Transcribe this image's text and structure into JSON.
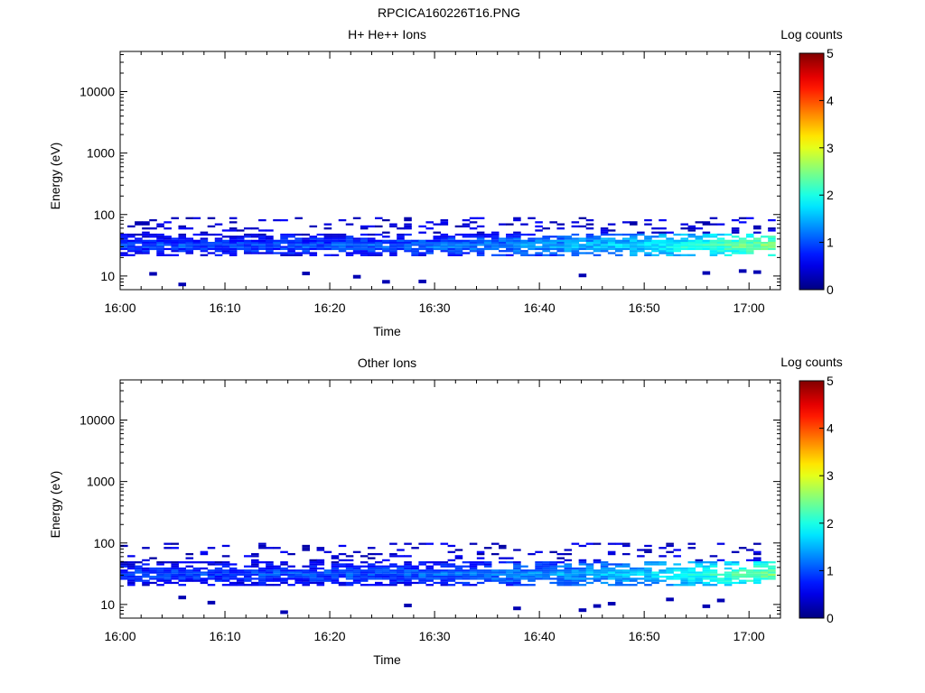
{
  "figure_title": "RPCICA160226T16.PNG",
  "chart_data": [
    {
      "type": "heatmap",
      "title": "H+ He++ Ions",
      "xlabel": "Time",
      "ylabel": "Energy (eV)",
      "x_ticks": [
        "16:00",
        "16:10",
        "16:20",
        "16:30",
        "16:40",
        "16:50",
        "17:00"
      ],
      "y_ticks": [
        "10",
        "100",
        "1000",
        "10000"
      ],
      "y_scale": "log",
      "ylim": [
        6,
        45000
      ],
      "xlim": [
        "16:00",
        "17:03"
      ],
      "colorbar": {
        "label": "Log counts",
        "ticks": [
          "0",
          "1",
          "2",
          "3",
          "4",
          "5"
        ],
        "range": [
          0,
          5
        ]
      },
      "band": {
        "center_energy_eV": 30,
        "low_energy_eV": 21,
        "high_energy_eV": 90,
        "sparse_low_energy_eV": 7,
        "intensity_start": 1.0,
        "intensity_end": 2.6,
        "end_minute": 62.5
      }
    },
    {
      "type": "heatmap",
      "title": "Other Ions",
      "xlabel": "Time",
      "ylabel": "Energy (eV)",
      "x_ticks": [
        "16:00",
        "16:10",
        "16:20",
        "16:30",
        "16:40",
        "16:50",
        "17:00"
      ],
      "y_ticks": [
        "10",
        "100",
        "1000",
        "10000"
      ],
      "y_scale": "log",
      "ylim": [
        6,
        45000
      ],
      "xlim": [
        "16:00",
        "17:03"
      ],
      "colorbar": {
        "label": "Log counts",
        "ticks": [
          "0",
          "1",
          "2",
          "3",
          "4",
          "5"
        ],
        "range": [
          0,
          5
        ]
      },
      "band": {
        "center_energy_eV": 30,
        "low_energy_eV": 20,
        "high_energy_eV": 95,
        "sparse_low_energy_eV": 7,
        "intensity_start": 1.0,
        "intensity_end": 2.5,
        "end_minute": 62.5
      }
    }
  ]
}
